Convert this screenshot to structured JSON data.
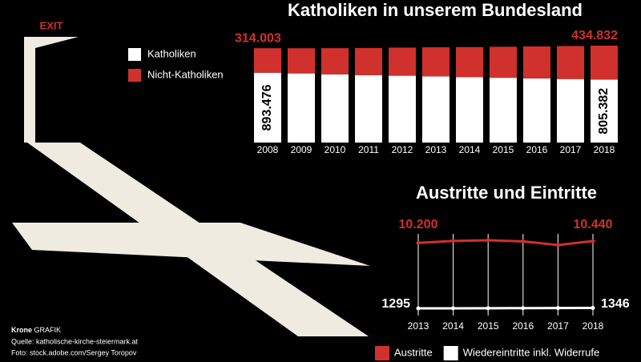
{
  "exit_sign": "EXIT",
  "credits": {
    "brand": "Krone",
    "brand_suffix": "GRAFIK",
    "source": "Quelle: katholische-kirche-steiermark.at",
    "photo": "Foto: stock.adobe.com/Sergey Toropov"
  },
  "chart_data": [
    {
      "type": "stacked-bar",
      "title": "Katholiken in unserem Bundesland",
      "categories": [
        "2008",
        "2009",
        "2010",
        "2011",
        "2012",
        "2013",
        "2014",
        "2015",
        "2016",
        "2017",
        "2018"
      ],
      "series": [
        {
          "name": "Katholiken",
          "color": "#ffffff",
          "values": [
            893476,
            885000,
            873000,
            862000,
            855000,
            847000,
            838000,
            829000,
            821000,
            813000,
            805382
          ],
          "value_labels": [
            "893.476",
            null,
            null,
            null,
            null,
            null,
            null,
            null,
            null,
            null,
            "805.382"
          ]
        },
        {
          "name": "Nicht-Katholiken",
          "color": "#d0312d",
          "values": [
            314003,
            322000,
            335000,
            348000,
            360000,
            372000,
            384000,
            397000,
            409000,
            422000,
            434832
          ],
          "value_labels": [
            "314.003",
            null,
            null,
            null,
            null,
            null,
            null,
            null,
            null,
            null,
            "434.832"
          ]
        }
      ]
    },
    {
      "type": "line",
      "title": "Austritte und Eintritte",
      "x": [
        2013,
        2014,
        2015,
        2016,
        2017,
        2018
      ],
      "series": [
        {
          "name": "Austritte",
          "color": "#d0312d",
          "values": [
            10200,
            10450,
            10550,
            10400,
            9900,
            10440
          ],
          "value_labels": [
            "10.200",
            null,
            null,
            null,
            null,
            "10.440"
          ]
        },
        {
          "name": "Wiedereintritte inkl. Widerrufe",
          "color": "#ffffff",
          "values": [
            1295,
            1300,
            1310,
            1320,
            1330,
            1346
          ],
          "value_labels": [
            "1295",
            null,
            null,
            null,
            null,
            "1346"
          ]
        }
      ]
    }
  ]
}
